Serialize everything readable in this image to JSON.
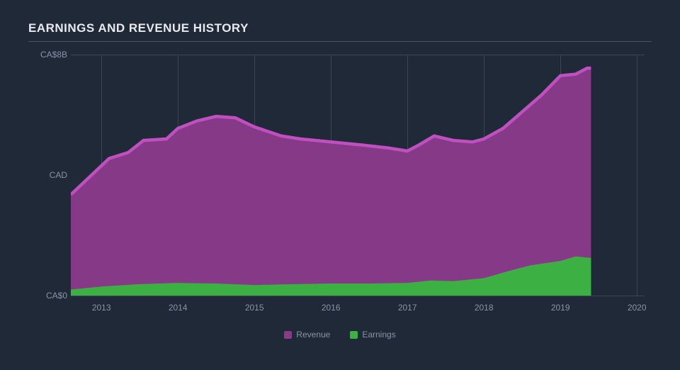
{
  "chart": {
    "type": "area",
    "title": "EARNINGS AND REVENUE HISTORY",
    "background_color": "#1f2937",
    "grid_color": "#3a4556",
    "text_color": "#8a94a6",
    "title_color": "#e8eaed",
    "title_fontsize": 17,
    "label_fontsize": 12,
    "x_axis": {
      "ticks": [
        "2013",
        "2014",
        "2015",
        "2016",
        "2017",
        "2018",
        "2019",
        "2020"
      ],
      "min": 2012.6,
      "max": 2020.1
    },
    "y_axis": {
      "label_mid": "CAD",
      "tick_top": "CA$8B",
      "tick_bottom": "CA$0",
      "min": 0,
      "max": 8
    },
    "series": {
      "revenue": {
        "label": "Revenue",
        "fill_color": "#8b3a8b",
        "stroke_color": "#c050c0",
        "stroke_width": 1.5,
        "points": [
          [
            2012.6,
            3.35
          ],
          [
            2012.85,
            3.95
          ],
          [
            2013.1,
            4.55
          ],
          [
            2013.35,
            4.75
          ],
          [
            2013.55,
            5.15
          ],
          [
            2013.85,
            5.2
          ],
          [
            2014.0,
            5.55
          ],
          [
            2014.25,
            5.8
          ],
          [
            2014.5,
            5.95
          ],
          [
            2014.75,
            5.9
          ],
          [
            2015.0,
            5.6
          ],
          [
            2015.35,
            5.3
          ],
          [
            2015.6,
            5.2
          ],
          [
            2016.0,
            5.1
          ],
          [
            2016.4,
            5.0
          ],
          [
            2016.75,
            4.9
          ],
          [
            2017.0,
            4.8
          ],
          [
            2017.15,
            5.0
          ],
          [
            2017.35,
            5.3
          ],
          [
            2017.6,
            5.15
          ],
          [
            2017.85,
            5.1
          ],
          [
            2018.0,
            5.2
          ],
          [
            2018.25,
            5.55
          ],
          [
            2018.5,
            6.1
          ],
          [
            2018.75,
            6.65
          ],
          [
            2019.0,
            7.3
          ],
          [
            2019.2,
            7.35
          ],
          [
            2019.35,
            7.55
          ],
          [
            2019.4,
            7.55
          ]
        ]
      },
      "earnings": {
        "label": "Earnings",
        "fill_color": "#3cb043",
        "stroke_color": "#3cb043",
        "stroke_width": 1,
        "points": [
          [
            2012.6,
            0.2
          ],
          [
            2013.0,
            0.3
          ],
          [
            2013.5,
            0.38
          ],
          [
            2014.0,
            0.42
          ],
          [
            2014.5,
            0.4
          ],
          [
            2015.0,
            0.35
          ],
          [
            2015.5,
            0.38
          ],
          [
            2016.0,
            0.4
          ],
          [
            2016.5,
            0.4
          ],
          [
            2017.0,
            0.42
          ],
          [
            2017.3,
            0.5
          ],
          [
            2017.6,
            0.48
          ],
          [
            2018.0,
            0.58
          ],
          [
            2018.3,
            0.8
          ],
          [
            2018.6,
            1.0
          ],
          [
            2019.0,
            1.15
          ],
          [
            2019.2,
            1.3
          ],
          [
            2019.4,
            1.25
          ]
        ]
      }
    },
    "legend": {
      "items": [
        {
          "key": "revenue",
          "label": "Revenue",
          "color": "#8b3a8b"
        },
        {
          "key": "earnings",
          "label": "Earnings",
          "color": "#3cb043"
        }
      ]
    }
  }
}
